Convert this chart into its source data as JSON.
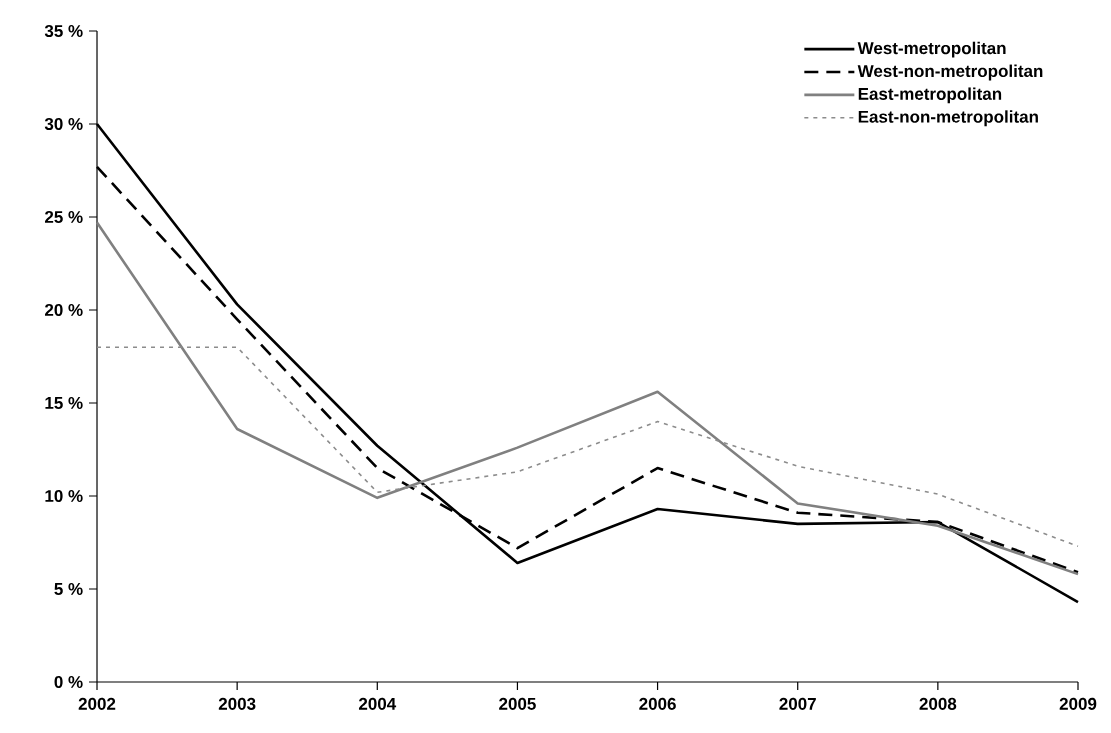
{
  "chart_data": {
    "type": "line",
    "categories": [
      "2002",
      "2003",
      "2004",
      "2005",
      "2006",
      "2007",
      "2008",
      "2009"
    ],
    "series": [
      {
        "name": "West-metropolitan",
        "color": "#000000",
        "line_style": "solid",
        "values": [
          30.0,
          20.3,
          12.7,
          6.4,
          9.3,
          8.5,
          8.6,
          4.3
        ]
      },
      {
        "name": "West-non-metropolitan",
        "color": "#000000",
        "line_style": "dashed",
        "values": [
          27.7,
          19.5,
          11.5,
          7.2,
          11.5,
          9.1,
          8.6,
          5.9
        ]
      },
      {
        "name": "East-metropolitan",
        "color": "#808080",
        "line_style": "solid",
        "values": [
          24.7,
          13.6,
          9.9,
          12.6,
          15.6,
          9.6,
          8.4,
          5.8
        ]
      },
      {
        "name": "East-non-metropolitan",
        "color": "#8c8c8c",
        "line_style": "dotted",
        "values": [
          18.0,
          18.0,
          10.2,
          11.3,
          14.0,
          11.6,
          10.1,
          7.3
        ]
      }
    ],
    "ylim": [
      0,
      35
    ],
    "yticks": [
      {
        "value": 0,
        "label": "0 %"
      },
      {
        "value": 5,
        "label": "5 %"
      },
      {
        "value": 10,
        "label": "10 %"
      },
      {
        "value": 15,
        "label": "15 %"
      },
      {
        "value": 20,
        "label": "20 %"
      },
      {
        "value": 25,
        "label": "25 %"
      },
      {
        "value": 30,
        "label": "30 %"
      },
      {
        "value": 35,
        "label": "35 %"
      }
    ],
    "grid": false,
    "legend": "top right",
    "marker": "none"
  }
}
